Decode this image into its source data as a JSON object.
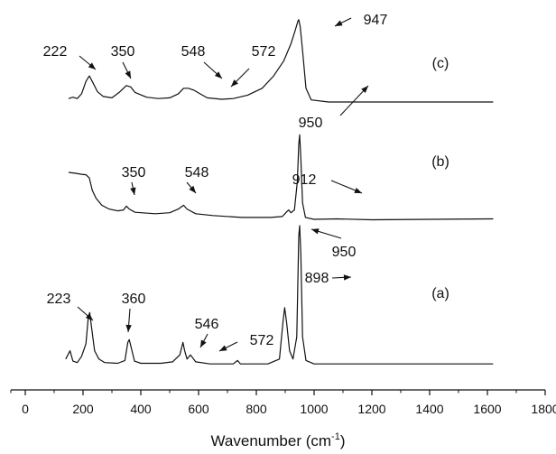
{
  "chart_data": {
    "type": "line",
    "title": "",
    "xlabel": "Wavenumber (cm",
    "xlabel_superscript": "-1",
    "xlabel_suffix": ")",
    "ylabel": "",
    "xlim": [
      -50,
      1800
    ],
    "xticks": [
      0,
      200,
      400,
      600,
      800,
      1000,
      1200,
      1400,
      1600,
      1800
    ],
    "grid": false,
    "legend": "none",
    "y_axis_shown": false,
    "series": [
      {
        "name": "(a)",
        "points": [
          [
            140,
            0.08
          ],
          [
            155,
            0.2
          ],
          [
            165,
            0.05
          ],
          [
            180,
            0.03
          ],
          [
            195,
            0.12
          ],
          [
            210,
            0.3
          ],
          [
            218,
            0.68
          ],
          [
            223,
            0.75
          ],
          [
            230,
            0.52
          ],
          [
            240,
            0.2
          ],
          [
            255,
            0.08
          ],
          [
            275,
            0.03
          ],
          [
            320,
            0.02
          ],
          [
            345,
            0.06
          ],
          [
            355,
            0.32
          ],
          [
            360,
            0.36
          ],
          [
            366,
            0.26
          ],
          [
            378,
            0.05
          ],
          [
            400,
            0.02
          ],
          [
            470,
            0.02
          ],
          [
            510,
            0.04
          ],
          [
            535,
            0.14
          ],
          [
            546,
            0.32
          ],
          [
            552,
            0.2
          ],
          [
            560,
            0.08
          ],
          [
            572,
            0.14
          ],
          [
            590,
            0.04
          ],
          [
            640,
            0.01
          ],
          [
            720,
            0.01
          ],
          [
            735,
            0.06
          ],
          [
            745,
            0.01
          ],
          [
            840,
            0.01
          ],
          [
            880,
            0.08
          ],
          [
            893,
            0.65
          ],
          [
            898,
            0.82
          ],
          [
            905,
            0.6
          ],
          [
            915,
            0.2
          ],
          [
            927,
            0.08
          ],
          [
            940,
            0.4
          ],
          [
            947,
            1.85
          ],
          [
            950,
            2.0
          ],
          [
            954,
            1.6
          ],
          [
            960,
            0.4
          ],
          [
            972,
            0.06
          ],
          [
            1000,
            0.01
          ],
          [
            1620,
            0.01
          ]
        ],
        "labels": [
          {
            "text": "(a)"
          },
          {
            "text": "223",
            "x": 223
          },
          {
            "text": "360",
            "x": 360
          },
          {
            "text": "546",
            "x": 546
          },
          {
            "text": "572",
            "x": 572
          },
          {
            "text": "898",
            "x": 898
          },
          {
            "text": "950",
            "x": 950
          }
        ]
      },
      {
        "name": "(b)",
        "points": [
          [
            150,
            1.0
          ],
          [
            175,
            0.98
          ],
          [
            195,
            0.96
          ],
          [
            210,
            0.95
          ],
          [
            222,
            0.88
          ],
          [
            232,
            0.62
          ],
          [
            245,
            0.45
          ],
          [
            265,
            0.3
          ],
          [
            290,
            0.22
          ],
          [
            320,
            0.18
          ],
          [
            340,
            0.2
          ],
          [
            350,
            0.28
          ],
          [
            360,
            0.22
          ],
          [
            380,
            0.15
          ],
          [
            450,
            0.12
          ],
          [
            500,
            0.14
          ],
          [
            530,
            0.22
          ],
          [
            548,
            0.3
          ],
          [
            560,
            0.22
          ],
          [
            590,
            0.12
          ],
          [
            650,
            0.08
          ],
          [
            750,
            0.04
          ],
          [
            850,
            0.04
          ],
          [
            890,
            0.06
          ],
          [
            905,
            0.16
          ],
          [
            912,
            0.2
          ],
          [
            920,
            0.14
          ],
          [
            932,
            0.2
          ],
          [
            942,
            0.8
          ],
          [
            947,
            1.6
          ],
          [
            950,
            1.8
          ],
          [
            954,
            1.3
          ],
          [
            960,
            0.35
          ],
          [
            970,
            0.04
          ],
          [
            1000,
            0.0
          ],
          [
            1080,
            0.01
          ],
          [
            1200,
            -0.01
          ],
          [
            1400,
            0.0
          ],
          [
            1620,
            0.01
          ]
        ],
        "labels": [
          {
            "text": "(b)"
          },
          {
            "text": "350",
            "x": 350
          },
          {
            "text": "548",
            "x": 548
          },
          {
            "text": "912",
            "x": 912
          }
        ]
      },
      {
        "name": "(c)",
        "points": [
          [
            150,
            0.05
          ],
          [
            165,
            0.07
          ],
          [
            180,
            0.05
          ],
          [
            195,
            0.12
          ],
          [
            210,
            0.3
          ],
          [
            222,
            0.38
          ],
          [
            232,
            0.3
          ],
          [
            250,
            0.15
          ],
          [
            270,
            0.08
          ],
          [
            300,
            0.06
          ],
          [
            325,
            0.14
          ],
          [
            350,
            0.24
          ],
          [
            365,
            0.22
          ],
          [
            380,
            0.14
          ],
          [
            420,
            0.07
          ],
          [
            460,
            0.05
          ],
          [
            500,
            0.06
          ],
          [
            530,
            0.12
          ],
          [
            548,
            0.2
          ],
          [
            565,
            0.2
          ],
          [
            585,
            0.17
          ],
          [
            605,
            0.12
          ],
          [
            630,
            0.06
          ],
          [
            680,
            0.04
          ],
          [
            720,
            0.05
          ],
          [
            770,
            0.1
          ],
          [
            820,
            0.2
          ],
          [
            860,
            0.38
          ],
          [
            895,
            0.6
          ],
          [
            920,
            0.85
          ],
          [
            935,
            1.05
          ],
          [
            944,
            1.18
          ],
          [
            947,
            1.2
          ],
          [
            952,
            1.1
          ],
          [
            960,
            0.75
          ],
          [
            972,
            0.2
          ],
          [
            990,
            0.03
          ],
          [
            1050,
            0.0
          ],
          [
            1200,
            0.0
          ],
          [
            1400,
            0.0
          ],
          [
            1620,
            0.0
          ]
        ],
        "labels": [
          {
            "text": "(c)"
          },
          {
            "text": "222",
            "x": 222
          },
          {
            "text": "350",
            "x": 350
          },
          {
            "text": "548",
            "x": 548
          },
          {
            "text": "572",
            "x": 572
          },
          {
            "text": "947",
            "x": 947
          },
          {
            "text": "950",
            "x": 950
          }
        ]
      }
    ]
  }
}
